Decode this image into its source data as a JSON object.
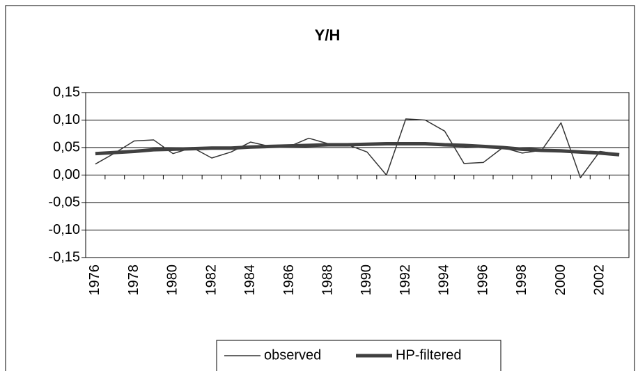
{
  "chart_data": {
    "type": "line",
    "title": "Y/H",
    "categories": [
      "1976",
      null,
      "1978",
      null,
      "1980",
      null,
      "1982",
      null,
      "1984",
      null,
      "1986",
      null,
      "1988",
      null,
      "1990",
      null,
      "1992",
      null,
      "1994",
      null,
      "1996",
      null,
      "1998",
      null,
      "2000",
      null,
      "2002",
      null
    ],
    "series": [
      {
        "name": "observed",
        "color": "#333333",
        "values": [
          0.02,
          0.04,
          0.062,
          0.064,
          0.039,
          0.05,
          0.031,
          0.042,
          0.06,
          0.052,
          0.052,
          0.067,
          0.057,
          0.055,
          0.042,
          0.0,
          0.102,
          0.1,
          0.08,
          0.021,
          0.023,
          0.05,
          0.04,
          0.045,
          0.095,
          -0.005,
          0.043,
          0.038
        ]
      },
      {
        "name": "HP-filtered",
        "color": "#404040",
        "values": [
          0.039,
          0.041,
          0.043,
          0.046,
          0.047,
          0.048,
          0.049,
          0.049,
          0.051,
          0.052,
          0.053,
          0.054,
          0.055,
          0.055,
          0.056,
          0.057,
          0.057,
          0.057,
          0.055,
          0.054,
          0.052,
          0.05,
          0.047,
          0.045,
          0.044,
          0.042,
          0.04,
          0.037
        ]
      }
    ],
    "ylim": [
      -0.15,
      0.15
    ],
    "yticks": [
      {
        "value": 0.15,
        "label": "0,15"
      },
      {
        "value": 0.1,
        "label": "0,10"
      },
      {
        "value": 0.05,
        "label": "0,05"
      },
      {
        "value": 0,
        "label": "0,00"
      },
      {
        "value": -0.05,
        "label": "-0,05"
      },
      {
        "value": -0.1,
        "label": "-0,10"
      },
      {
        "value": -0.15,
        "label": "-0,15"
      }
    ],
    "grid": true,
    "legend": "bottom"
  }
}
